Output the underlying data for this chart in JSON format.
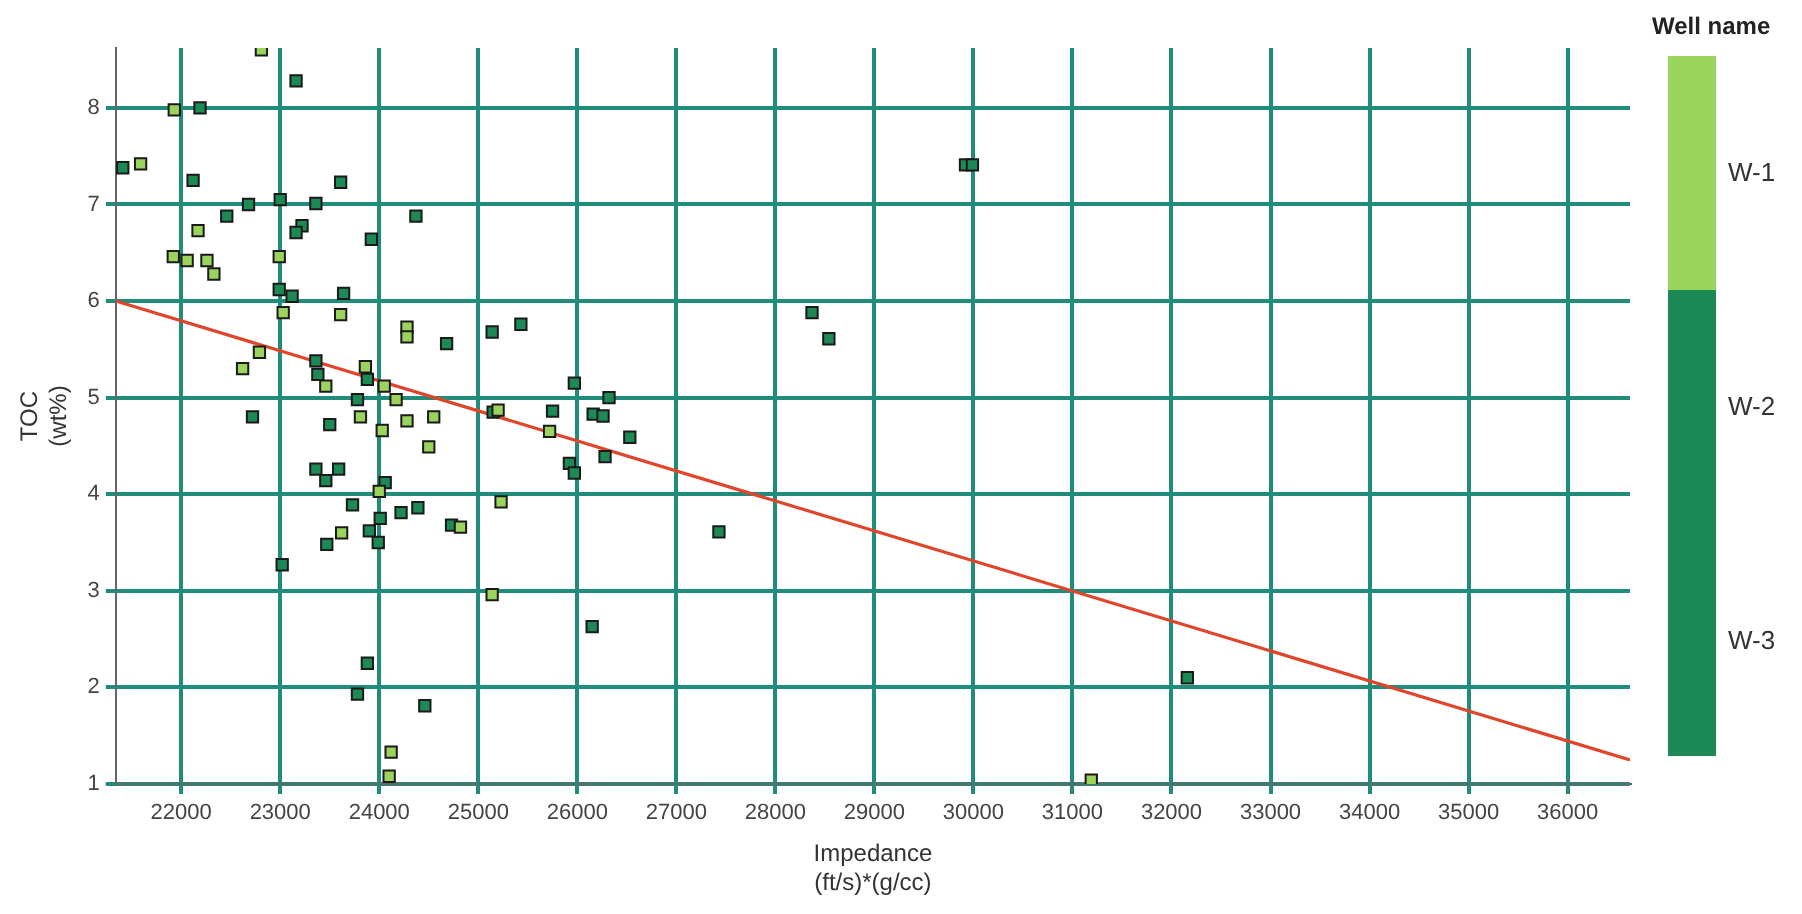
{
  "chart_data": {
    "type": "scatter",
    "xlabel": "Impedance\n(ft/s)*(g/cc)",
    "ylabel": "TOC\n(wt%)",
    "legend_title": "Well name",
    "legend": "right",
    "grid": true,
    "marker": "square",
    "xlim": [
      21340,
      36630
    ],
    "xticks": [
      22000,
      23000,
      24000,
      25000,
      26000,
      27000,
      28000,
      29000,
      30000,
      31000,
      32000,
      33000,
      34000,
      35000,
      36000
    ],
    "ylim": [
      1,
      8.62
    ],
    "yticks": [
      1,
      2,
      3,
      4,
      5,
      6,
      7,
      8
    ],
    "series": [
      {
        "name": "W-1",
        "color": "#9bd45c",
        "x": [
          21590,
          21930,
          22810,
          22170,
          21920,
          22060,
          22260,
          22330,
          22990,
          23030,
          23610,
          24280,
          24280,
          22620,
          22790,
          23460,
          23860,
          24050,
          24170,
          23810,
          24030,
          24280,
          24550,
          24500,
          24000,
          23620,
          24820,
          25140,
          25230,
          24120,
          24100,
          25200,
          25720,
          31190
        ],
        "values": [
          7.42,
          7.98,
          8.6,
          6.73,
          6.46,
          6.42,
          6.42,
          6.28,
          6.46,
          5.88,
          5.86,
          5.73,
          5.63,
          5.3,
          5.47,
          5.12,
          5.32,
          5.12,
          4.98,
          4.8,
          4.66,
          4.76,
          4.8,
          4.49,
          4.03,
          3.6,
          3.66,
          2.96,
          3.92,
          1.33,
          1.08,
          4.87,
          4.65,
          1.04
        ]
      },
      {
        "name": "W-2",
        "color": "#1d8a55",
        "x": [
          21410,
          22190,
          23160,
          22120,
          22680,
          23000,
          23360,
          23610,
          22460,
          23220,
          23160,
          23920,
          24370,
          22990,
          23120,
          23640,
          24680,
          25140,
          25430,
          23360,
          23380,
          23880,
          23780,
          22720,
          23500,
          23360,
          23460,
          23590,
          24060,
          23730,
          24010,
          24220,
          24390,
          23470,
          23900,
          23990,
          24730,
          23020,
          23880,
          23780,
          24460,
          25150,
          25750,
          25970,
          26160,
          26260,
          26320,
          26530,
          26280,
          25920,
          25970,
          27430,
          26150,
          28370,
          28540,
          29920,
          29990,
          32160
        ],
        "values": [
          7.38,
          8.0,
          8.28,
          7.25,
          7.0,
          7.05,
          7.01,
          7.23,
          6.88,
          6.78,
          6.71,
          6.64,
          6.88,
          6.12,
          6.05,
          6.08,
          5.56,
          5.68,
          5.76,
          5.38,
          5.24,
          5.19,
          4.98,
          4.8,
          4.72,
          4.26,
          4.14,
          4.26,
          4.12,
          3.89,
          3.75,
          3.81,
          3.86,
          3.48,
          3.62,
          3.5,
          3.68,
          3.27,
          2.25,
          1.93,
          1.81,
          4.85,
          4.86,
          5.15,
          4.83,
          4.81,
          5.0,
          4.59,
          4.39,
          4.32,
          4.22,
          3.61,
          2.63,
          5.88,
          5.61,
          7.41,
          7.41,
          2.1
        ]
      },
      {
        "name": "W-3",
        "color": "#1d8a55"
      },
      {
        "type": "line",
        "marker": "none",
        "color": "#e0452b",
        "x": [
          21340,
          36630
        ],
        "values": [
          6.0,
          1.25
        ]
      }
    ]
  }
}
